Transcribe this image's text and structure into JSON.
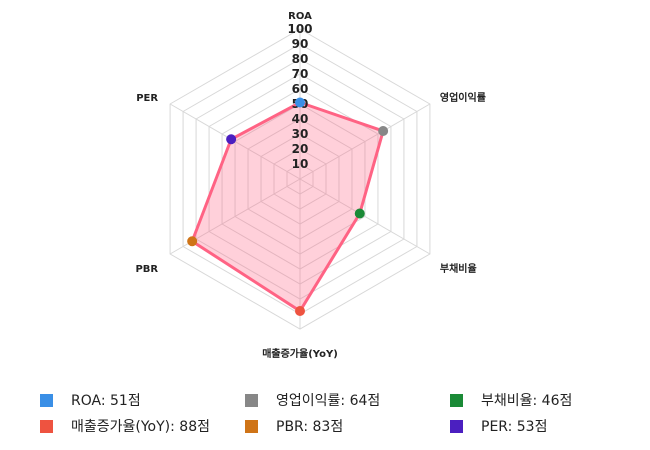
{
  "chart_data": {
    "type": "radar",
    "axes": [
      "ROA",
      "영업이익률",
      "부채비율",
      "매출증가율(YoY)",
      "PBR",
      "PER"
    ],
    "values": [
      51,
      64,
      46,
      88,
      83,
      53
    ],
    "rlim": [
      0,
      100
    ],
    "ticks": [
      "10",
      "20",
      "30",
      "40",
      "50",
      "60",
      "70",
      "80",
      "90",
      "100"
    ],
    "grid": true,
    "fill_color": "#ff6384",
    "point_colors": [
      "#3a8fe6",
      "#878787",
      "#1a8a36",
      "#ee5340",
      "#cf7417",
      "#4b1fc0"
    ],
    "legend_position": "bottom",
    "legend": [
      {
        "label": "ROA: 51점",
        "color": "#3a8fe6"
      },
      {
        "label": "영업이익률: 64점",
        "color": "#878787"
      },
      {
        "label": "부채비율: 46점",
        "color": "#1a8a36"
      },
      {
        "label": "매출증가율(YoY): 88점",
        "color": "#ee5340"
      },
      {
        "label": "PBR: 83점",
        "color": "#cf7417"
      },
      {
        "label": "PER: 53점",
        "color": "#4b1fc0"
      }
    ]
  }
}
